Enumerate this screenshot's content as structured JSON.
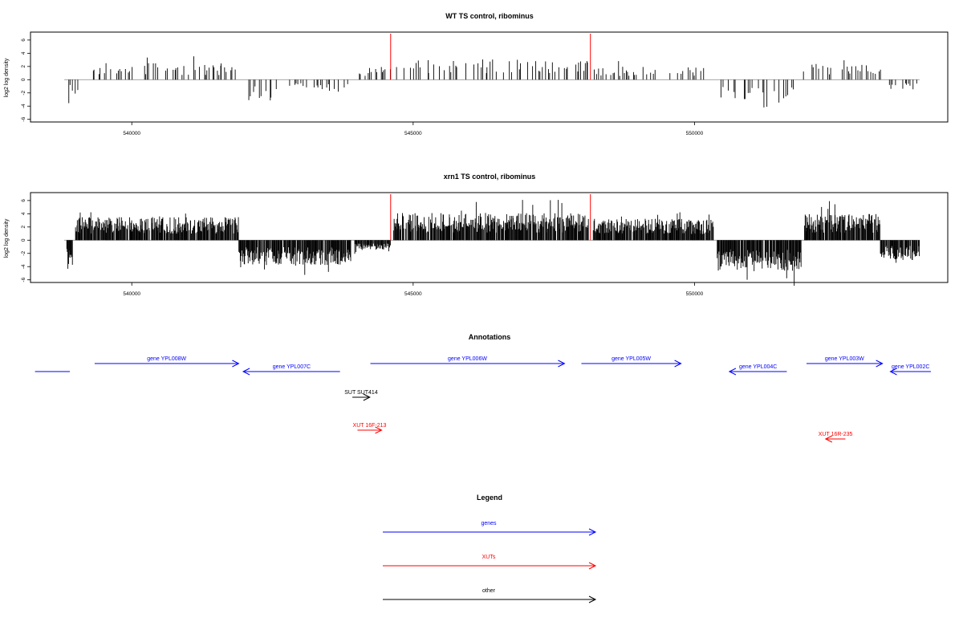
{
  "chart_data": [
    {
      "type": "bar",
      "title": "WT TS control, ribominus",
      "ylabel": "log2 log density",
      "xlim": [
        538200,
        554500
      ],
      "ylim": [
        -6.4,
        7.2
      ],
      "x_ticks": [
        540000,
        545000,
        550000
      ],
      "x_tick_labels": [
        "540000",
        "545000",
        "550000"
      ],
      "y_ticks": [
        -6,
        -4,
        -2,
        0,
        2,
        4,
        6
      ],
      "y_tick_labels": [
        "-6",
        "-4",
        "-2",
        "0",
        "2",
        "4",
        "6"
      ],
      "markers": [
        544600,
        548150
      ],
      "marker_color": "#ff0000",
      "bar_color": "#000000",
      "segments": [
        {
          "from": 538840,
          "to": 539060,
          "sign": -1,
          "amp": 2.0
        },
        {
          "from": 539300,
          "to": 541900,
          "sign": 1,
          "amp": 2.0
        },
        {
          "from": 542000,
          "to": 542600,
          "sign": -1,
          "amp": 2.8
        },
        {
          "from": 542700,
          "to": 543900,
          "sign": -1,
          "amp": 1.5
        },
        {
          "from": 543900,
          "to": 544600,
          "sign": 1,
          "amp": 1.6
        },
        {
          "from": 544650,
          "to": 548120,
          "sign": 1,
          "amp": 2.5
        },
        {
          "from": 548200,
          "to": 550200,
          "sign": 1,
          "amp": 1.6
        },
        {
          "from": 550450,
          "to": 551800,
          "sign": -1,
          "amp": 2.7
        },
        {
          "from": 551900,
          "to": 553400,
          "sign": 1,
          "amp": 2.0
        },
        {
          "from": 553400,
          "to": 554000,
          "sign": -1,
          "amp": 1.2
        }
      ]
    },
    {
      "type": "bar",
      "title": "xrn1 TS control, ribominus",
      "ylabel": "log2 log density",
      "xlim": [
        538200,
        554500
      ],
      "ylim": [
        -6.4,
        7.2
      ],
      "x_ticks": [
        540000,
        545000,
        550000
      ],
      "x_tick_labels": [
        "540000",
        "545000",
        "550000"
      ],
      "y_ticks": [
        -6,
        -4,
        -2,
        0,
        2,
        4,
        6
      ],
      "y_tick_labels": [
        "-6",
        "-4",
        "-2",
        "0",
        "2",
        "4",
        "6"
      ],
      "markers": [
        544600,
        548150
      ],
      "marker_color": "#ff0000",
      "bar_color": "#000000",
      "segments": [
        {
          "from": 538840,
          "to": 538950,
          "sign": -1,
          "amp": 3.5
        },
        {
          "from": 539000,
          "to": 541900,
          "sign": 1,
          "amp": 2.8
        },
        {
          "from": 541900,
          "to": 543900,
          "sign": -1,
          "amp": 3.0
        },
        {
          "from": 543950,
          "to": 544600,
          "sign": -1,
          "amp": 1.2
        },
        {
          "from": 544650,
          "to": 548120,
          "sign": 1,
          "amp": 3.3
        },
        {
          "from": 548200,
          "to": 550350,
          "sign": 1,
          "amp": 2.6
        },
        {
          "from": 550400,
          "to": 551900,
          "sign": -1,
          "amp": 3.8
        },
        {
          "from": 551950,
          "to": 553300,
          "sign": 1,
          "amp": 3.2
        },
        {
          "from": 553300,
          "to": 554000,
          "sign": -1,
          "amp": 2.4
        }
      ]
    }
  ],
  "annotations": {
    "title": "Annotations",
    "features": [
      {
        "label": "",
        "color": "#0000ff",
        "start": 538280,
        "end": 538900,
        "strand": "none",
        "row": 1
      },
      {
        "label": "gene YPL008W",
        "color": "#0000ff",
        "start": 539340,
        "end": 541900,
        "strand": "+",
        "row": 0
      },
      {
        "label": "gene YPL007C",
        "color": "#0000ff",
        "start": 541980,
        "end": 543700,
        "strand": "-",
        "row": 1
      },
      {
        "label": "gene YPL006W",
        "color": "#0000ff",
        "start": 544240,
        "end": 547690,
        "strand": "+",
        "row": 0
      },
      {
        "label": "gene YPL005W",
        "color": "#0000ff",
        "start": 547990,
        "end": 549760,
        "strand": "+",
        "row": 0
      },
      {
        "label": "gene YPL004C",
        "color": "#0000ff",
        "start": 550620,
        "end": 551640,
        "strand": "-",
        "row": 1
      },
      {
        "label": "gene YPL003W",
        "color": "#0000ff",
        "start": 551990,
        "end": 553340,
        "strand": "+",
        "row": 0
      },
      {
        "label": "gene YPL002C",
        "color": "#0000ff",
        "start": 553480,
        "end": 554200,
        "strand": "-",
        "row": 1
      },
      {
        "label": "SUT SUT414",
        "color": "#000000",
        "start": 543920,
        "end": 544230,
        "strand": "+",
        "row": 3
      },
      {
        "label": "XUT 16F-213",
        "color": "#ff0000",
        "start": 544010,
        "end": 544440,
        "strand": "+",
        "row": 5
      },
      {
        "label": "XUT 16R-235",
        "color": "#ff0000",
        "start": 552330,
        "end": 552680,
        "strand": "-",
        "row": 6
      }
    ]
  },
  "legend": {
    "title": "Legend",
    "items": [
      {
        "label": "genes",
        "color": "#0000ff"
      },
      {
        "label": "XUTs",
        "color": "#ff0000"
      },
      {
        "label": "other",
        "color": "#000000"
      }
    ]
  }
}
